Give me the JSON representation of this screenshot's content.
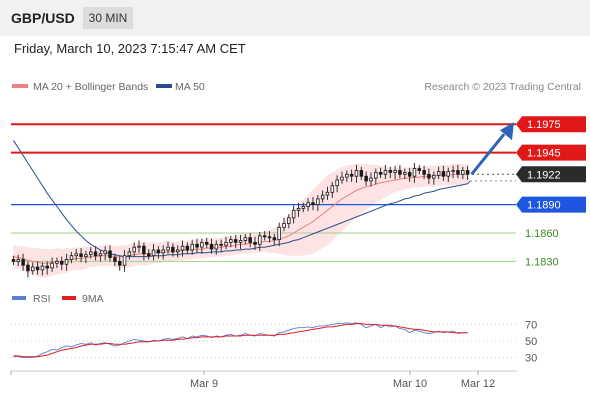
{
  "header": {
    "symbol": "GBP/USD",
    "timeframe": "30 MIN",
    "datetime": "Friday, March 10, 2023 7:15:47 AM CET"
  },
  "legend": {
    "ma20_label": "MA 20 + Bollinger Bands",
    "ma50_label": "MA 50",
    "ma20_color": "#f08080",
    "ma50_color": "#2a4d8f",
    "copyright": "Research © 2023 Trading Central"
  },
  "rsi_legend": {
    "rsi_label": "RSI",
    "ma9_label": "9MA",
    "rsi_color": "#5b7fd6",
    "ma9_color": "#e02020"
  },
  "chart_data": [
    {
      "type": "candlestick",
      "title": "GBP/USD 30 MIN",
      "x_ticks": [
        "Mar 9",
        "Mar 10",
        "Mar 12"
      ],
      "y_range": [
        1.1805,
        1.199
      ],
      "current_price": 1.1922,
      "levels": [
        {
          "label": "1.1975",
          "value": 1.1975,
          "kind": "resistance",
          "color": "#e01818"
        },
        {
          "label": "1.1945",
          "value": 1.1945,
          "kind": "resistance",
          "color": "#e01818"
        },
        {
          "label": "1.1922",
          "value": 1.1922,
          "kind": "last",
          "color": "#2b2b2b"
        },
        {
          "label": "1.1890",
          "value": 1.189,
          "kind": "pivot",
          "color": "#1e56e0"
        },
        {
          "label": "1.1860",
          "value": 1.186,
          "kind": "support",
          "color": "#5aa832"
        },
        {
          "label": "1.1830",
          "value": 1.183,
          "kind": "support",
          "color": "#5aa832"
        }
      ],
      "forecast": {
        "from": 1.1922,
        "to": 1.1975
      },
      "close": [
        1.183,
        1.1832,
        1.1826,
        1.182,
        1.1824,
        1.1821,
        1.1825,
        1.1823,
        1.1828,
        1.183,
        1.1827,
        1.1832,
        1.1836,
        1.1838,
        1.1835,
        1.1837,
        1.184,
        1.1836,
        1.1838,
        1.1841,
        1.1834,
        1.183,
        1.1826,
        1.1836,
        1.184,
        1.1845,
        1.1846,
        1.1838,
        1.1836,
        1.1842,
        1.1839,
        1.1842,
        1.1845,
        1.184,
        1.1842,
        1.1846,
        1.1842,
        1.1848,
        1.1845,
        1.185,
        1.1848,
        1.1843,
        1.1848,
        1.1847,
        1.185,
        1.1853,
        1.185,
        1.1852,
        1.1855,
        1.185,
        1.1848,
        1.1857,
        1.1856,
        1.1855,
        1.1853,
        1.1866,
        1.187,
        1.1876,
        1.1884,
        1.1886,
        1.1888,
        1.1892,
        1.189,
        1.1896,
        1.19,
        1.1903,
        1.191,
        1.1916,
        1.1919,
        1.1922,
        1.192,
        1.1926,
        1.192,
        1.1915,
        1.1918,
        1.1924,
        1.1922,
        1.1926,
        1.1924,
        1.1926,
        1.1922,
        1.1924,
        1.192,
        1.1928,
        1.1926,
        1.1922,
        1.1918,
        1.1921,
        1.1925,
        1.192,
        1.1925,
        1.1926,
        1.1922,
        1.1926,
        1.1922
      ],
      "ma20": [
        1.1835,
        1.1834,
        1.1833,
        1.1831,
        1.183,
        1.1829,
        1.1828,
        1.1828,
        1.1829,
        1.183,
        1.183,
        1.1831,
        1.1832,
        1.1833,
        1.1833,
        1.1834,
        1.1835,
        1.1835,
        1.1836,
        1.1836,
        1.1836,
        1.1835,
        1.1835,
        1.1835,
        1.1836,
        1.1837,
        1.1838,
        1.1838,
        1.1838,
        1.1839,
        1.1839,
        1.184,
        1.184,
        1.184,
        1.1841,
        1.1841,
        1.1842,
        1.1842,
        1.1843,
        1.1843,
        1.1844,
        1.1844,
        1.1845,
        1.1845,
        1.1846,
        1.1846,
        1.1847,
        1.1848,
        1.1848,
        1.1849,
        1.1849,
        1.185,
        1.1851,
        1.1851,
        1.1852,
        1.1853,
        1.1855,
        1.1857,
        1.186,
        1.1863,
        1.1866,
        1.1869,
        1.1872,
        1.1876,
        1.188,
        1.1884,
        1.1888,
        1.1892,
        1.1896,
        1.1899,
        1.1902,
        1.1905,
        1.1907,
        1.1909,
        1.191,
        1.1912,
        1.1913,
        1.1914,
        1.1915,
        1.1916,
        1.1917,
        1.1918,
        1.1918,
        1.1919,
        1.1919,
        1.192,
        1.192,
        1.192,
        1.1921,
        1.1921,
        1.1921,
        1.1922,
        1.1922,
        1.1922,
        1.1922
      ],
      "ma50": [
        1.1958,
        1.195,
        1.1942,
        1.1934,
        1.1926,
        1.1918,
        1.191,
        1.1902,
        1.1895,
        1.1888,
        1.1881,
        1.1874,
        1.1868,
        1.1862,
        1.1857,
        1.1852,
        1.1848,
        1.1845,
        1.1842,
        1.184,
        1.1838,
        1.1837,
        1.1836,
        1.1835,
        1.1835,
        1.1835,
        1.1835,
        1.1835,
        1.1835,
        1.1836,
        1.1836,
        1.1836,
        1.1837,
        1.1837,
        1.1837,
        1.1838,
        1.1838,
        1.1838,
        1.1839,
        1.1839,
        1.1839,
        1.184,
        1.184,
        1.184,
        1.1841,
        1.1841,
        1.1842,
        1.1842,
        1.1843,
        1.1843,
        1.1844,
        1.1845,
        1.1845,
        1.1846,
        1.1847,
        1.1848,
        1.1849,
        1.185,
        1.1852,
        1.1853,
        1.1855,
        1.1857,
        1.1859,
        1.1861,
        1.1863,
        1.1865,
        1.1867,
        1.1869,
        1.1871,
        1.1873,
        1.1875,
        1.1877,
        1.1879,
        1.1881,
        1.1883,
        1.1885,
        1.1887,
        1.1889,
        1.1891,
        1.1892,
        1.1894,
        1.1896,
        1.1897,
        1.1899,
        1.19,
        1.1902,
        1.1903,
        1.1904,
        1.1906,
        1.1907,
        1.1908,
        1.1909,
        1.191,
        1.1911,
        1.1912
      ],
      "bb_width": [
        0.0012,
        0.0012,
        0.0013,
        0.0014,
        0.0014,
        0.0015,
        0.0015,
        0.0015,
        0.0014,
        0.0014,
        0.0013,
        0.0013,
        0.0012,
        0.0012,
        0.0012,
        0.0012,
        0.0011,
        0.0011,
        0.0011,
        0.0011,
        0.0011,
        0.0011,
        0.0012,
        0.0012,
        0.0012,
        0.0012,
        0.0012,
        0.0012,
        0.0012,
        0.0011,
        0.0011,
        0.0011,
        0.0011,
        0.001,
        0.001,
        0.001,
        0.001,
        0.001,
        0.001,
        0.001,
        0.001,
        0.001,
        0.001,
        0.001,
        0.001,
        0.001,
        0.001,
        0.001,
        0.001,
        0.001,
        0.001,
        0.0011,
        0.0011,
        0.0012,
        0.0013,
        0.0015,
        0.0018,
        0.0021,
        0.0024,
        0.0027,
        0.003,
        0.0032,
        0.0034,
        0.0035,
        0.0036,
        0.0037,
        0.0036,
        0.0035,
        0.0034,
        0.0032,
        0.003,
        0.0028,
        0.0026,
        0.0024,
        0.0022,
        0.002,
        0.0018,
        0.0016,
        0.0014,
        0.0013,
        0.0012,
        0.0012,
        0.0011,
        0.0011,
        0.0011,
        0.0011,
        0.0011,
        0.0011,
        0.0011,
        0.0011,
        0.0011,
        0.0011,
        0.0011,
        0.0011,
        0.0011
      ]
    },
    {
      "type": "line",
      "title": "RSI",
      "y_ticks": [
        70,
        50,
        30
      ],
      "series": [
        {
          "name": "RSI",
          "values": [
            31,
            31,
            30,
            30,
            30,
            32,
            35,
            37,
            40,
            39,
            42,
            44,
            43,
            45,
            47,
            46,
            48,
            45,
            47,
            48,
            46,
            44,
            45,
            48,
            50,
            52,
            51,
            50,
            49,
            51,
            50,
            52,
            53,
            52,
            53,
            55,
            53,
            56,
            55,
            57,
            56,
            54,
            56,
            55,
            57,
            58,
            56,
            57,
            59,
            57,
            56,
            59,
            58,
            57,
            56,
            60,
            61,
            63,
            65,
            66,
            66,
            67,
            66,
            68,
            68,
            69,
            70,
            71,
            71,
            72,
            71,
            72,
            70,
            66,
            68,
            70,
            66,
            69,
            67,
            68,
            65,
            64,
            60,
            63,
            62,
            60,
            59,
            60,
            62,
            60,
            61,
            62,
            59,
            60,
            60
          ]
        },
        {
          "name": "9MA",
          "values": [
            32,
            32,
            31,
            31,
            31,
            31,
            32,
            33,
            35,
            37,
            39,
            40,
            41,
            42,
            44,
            45,
            46,
            46,
            46,
            47,
            47,
            46,
            46,
            46,
            47,
            48,
            49,
            49,
            49,
            50,
            50,
            51,
            51,
            51,
            52,
            52,
            53,
            54,
            54,
            55,
            55,
            55,
            55,
            55,
            56,
            56,
            56,
            56,
            57,
            57,
            57,
            57,
            57,
            57,
            57,
            58,
            58,
            59,
            60,
            61,
            62,
            63,
            64,
            65,
            66,
            67,
            67,
            68,
            69,
            70,
            70,
            71,
            71,
            70,
            70,
            70,
            69,
            69,
            69,
            68,
            67,
            66,
            65,
            64,
            64,
            63,
            62,
            61,
            61,
            61,
            61,
            60,
            60,
            60,
            60
          ]
        }
      ]
    }
  ]
}
